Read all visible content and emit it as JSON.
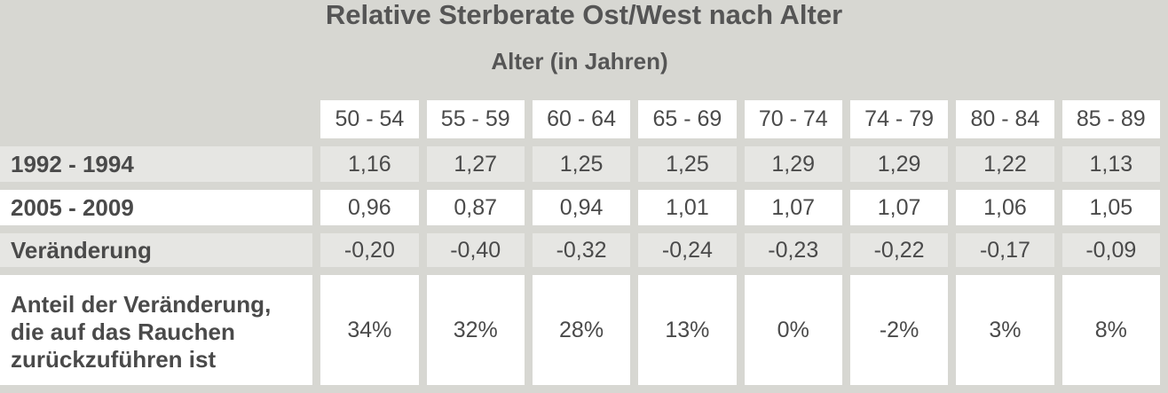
{
  "chart_data": {
    "type": "table",
    "title": "Relative Sterberate Ost/West nach Alter",
    "subtitle": "Alter (in Jahren)",
    "columns": [
      "50 - 54",
      "55 - 59",
      "60 - 64",
      "65 - 69",
      "70 - 74",
      "74 - 79",
      "80 - 84",
      "85 - 89"
    ],
    "rows": [
      {
        "label": "1992 - 1994",
        "values": [
          "1,16",
          "1,27",
          "1,25",
          "1,25",
          "1,29",
          "1,29",
          "1,22",
          "1,13"
        ]
      },
      {
        "label": "2005 - 2009",
        "values": [
          "0,96",
          "0,87",
          "0,94",
          "1,01",
          "1,07",
          "1,07",
          "1,06",
          "1,05"
        ]
      },
      {
        "label": "Veränderung",
        "values": [
          "-0,20",
          "-0,40",
          "-0,32",
          "-0,24",
          "-0,23",
          "-0,22",
          "-0,17",
          "-0,09"
        ]
      },
      {
        "label_lines": [
          "Anteil der Veränderung,",
          "die auf das Rauchen",
          "zurückzuführen ist"
        ],
        "values": [
          "34%",
          "32%",
          "28%",
          "13%",
          "0%",
          "-2%",
          "3%",
          "8%"
        ]
      }
    ]
  }
}
